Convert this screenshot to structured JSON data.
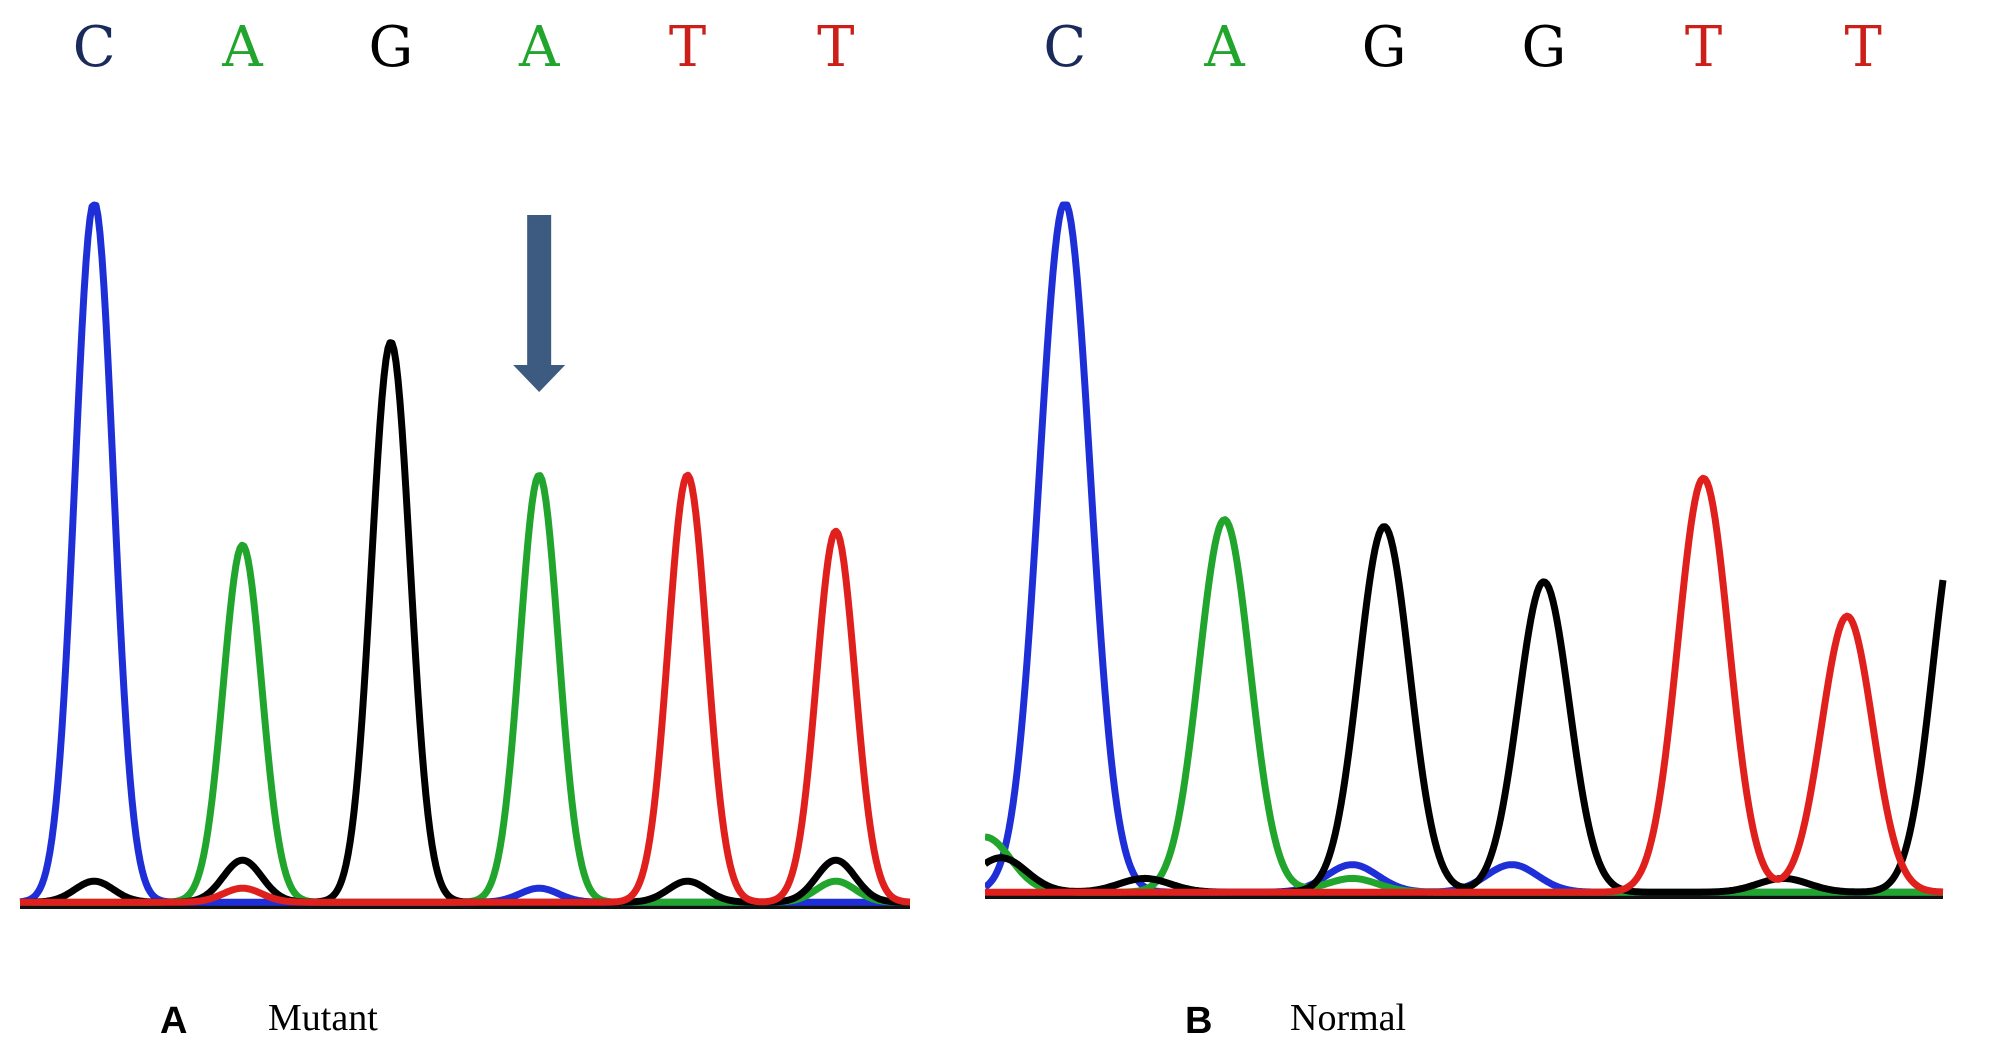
{
  "chart_data": [
    {
      "type": "line",
      "panel_label": "A",
      "caption": "Mutant",
      "base_calls": [
        {
          "base": "C",
          "x": 1
        },
        {
          "base": "A",
          "x": 2
        },
        {
          "base": "G",
          "x": 3
        },
        {
          "base": "A",
          "x": 4
        },
        {
          "base": "T",
          "x": 5
        },
        {
          "base": "T",
          "x": 6
        }
      ],
      "xlim": [
        0.5,
        6.5
      ],
      "ylim": [
        0,
        100
      ],
      "series": [
        {
          "name": "C",
          "color": "#1f2fd8",
          "peaks": [
            [
              1,
              100
            ],
            [
              4,
              2
            ]
          ]
        },
        {
          "name": "A",
          "color": "#21a52c",
          "peaks": [
            [
              2,
              51
            ],
            [
              4,
              61
            ],
            [
              6,
              3
            ]
          ]
        },
        {
          "name": "G",
          "color": "#000000",
          "peaks": [
            [
              1,
              3
            ],
            [
              2,
              6
            ],
            [
              3,
              80
            ],
            [
              5,
              3
            ],
            [
              6,
              6
            ]
          ]
        },
        {
          "name": "T",
          "color": "#e0201c",
          "peaks": [
            [
              2,
              2
            ],
            [
              5,
              61
            ],
            [
              6,
              53
            ]
          ]
        }
      ],
      "annotations": [
        {
          "type": "arrow-down",
          "x": 4
        }
      ]
    },
    {
      "type": "line",
      "panel_label": "B",
      "caption": "Normal",
      "base_calls": [
        {
          "base": "C",
          "x": 1
        },
        {
          "base": "A",
          "x": 2
        },
        {
          "base": "G",
          "x": 3
        },
        {
          "base": "G",
          "x": 4
        },
        {
          "base": "T",
          "x": 5
        },
        {
          "base": "T",
          "x": 6
        }
      ],
      "xlim": [
        0.5,
        6.5
      ],
      "ylim": [
        0,
        100
      ],
      "series": [
        {
          "name": "C",
          "color": "#1f2fd8",
          "peaks": [
            [
              1,
              100
            ],
            [
              2.8,
              4
            ],
            [
              3.8,
              4
            ]
          ]
        },
        {
          "name": "A",
          "color": "#21a52c",
          "peaks": [
            [
              2,
              54
            ],
            [
              0.5,
              8
            ],
            [
              2.8,
              2
            ]
          ]
        },
        {
          "name": "G",
          "color": "#000000",
          "peaks": [
            [
              0.6,
              5
            ],
            [
              1.5,
              2
            ],
            [
              3,
              53
            ],
            [
              4,
              45
            ],
            [
              5.5,
              2
            ],
            [
              6.6,
              55
            ]
          ]
        },
        {
          "name": "T",
          "color": "#e0201c",
          "peaks": [
            [
              5,
              60
            ],
            [
              5.9,
              40
            ]
          ]
        }
      ],
      "annotations": []
    }
  ]
}
